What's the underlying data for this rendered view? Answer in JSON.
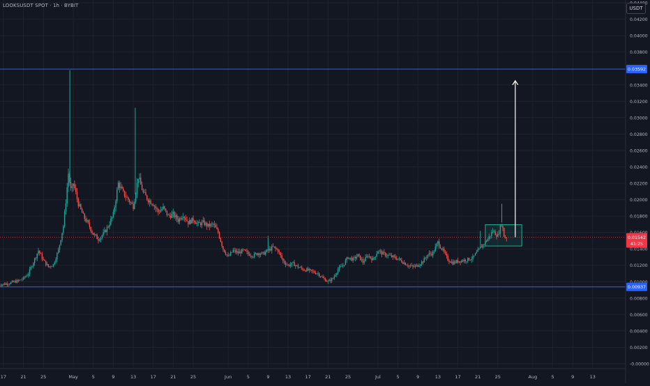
{
  "header": {
    "title": "LOOKSUSDT SPOT · 1h · BYBIT"
  },
  "currency": {
    "label": "USDT"
  },
  "colors": {
    "background": "#131722",
    "grid": "#1e222d",
    "axis_text": "#b2b5be",
    "up": "#26a69a",
    "down": "#ef5350",
    "level_line": "#2962ff",
    "current_line": "#f23645",
    "box_stroke": "#22ab94",
    "arrow": "#ffffff"
  },
  "chart_data": {
    "type": "candlestick",
    "title": "",
    "ylim": [
      0.0,
      0.045
    ],
    "y_ticks": [
      "0.04400",
      "0.04200",
      "0.04000",
      "0.03800",
      "0.03400",
      "0.03200",
      "0.03000",
      "0.02800",
      "0.02600",
      "0.02400",
      "0.02200",
      "0.02000",
      "0.01800",
      "0.01600",
      "0.01400",
      "0.01200",
      "0.01000",
      "0.00800",
      "0.00600",
      "0.00400",
      "0.00200",
      "-0.00000"
    ],
    "y_tick_values": [
      0.044,
      0.042,
      0.04,
      0.038,
      0.034,
      0.032,
      0.03,
      0.028,
      0.026,
      0.024,
      0.022,
      0.02,
      0.018,
      0.016,
      0.014,
      0.012,
      0.01,
      0.008,
      0.006,
      0.004,
      0.002,
      0.0
    ],
    "x_ticks": [
      "17",
      "21",
      "25",
      "May",
      "5",
      "9",
      "13",
      "17",
      "21",
      "25",
      "Jun",
      "5",
      "9",
      "13",
      "17",
      "21",
      "25",
      "Jul",
      "5",
      "9",
      "13",
      "17",
      "21",
      "25",
      "Aug",
      "5",
      "9",
      "13"
    ],
    "x_tick_days": [
      -13,
      -9,
      -5,
      1,
      5,
      9,
      13,
      17,
      21,
      25,
      32,
      36,
      40,
      44,
      48,
      52,
      56,
      62,
      66,
      70,
      74,
      78,
      82,
      86,
      93,
      97,
      101,
      105
    ],
    "x_axis_start_date": "2024-04-17",
    "horizontal_levels": [
      {
        "value": 0.03592,
        "label": "0.03592"
      },
      {
        "value": 0.00937,
        "label": "0.00937"
      }
    ],
    "current_price": {
      "value": 0.01542,
      "label": "0.01542",
      "countdown": "41:25"
    },
    "breakout_box": {
      "day_start": 83.5,
      "day_end": 90.8,
      "price_low": 0.01435,
      "price_high": 0.01695
    },
    "target_arrow": {
      "day": 89.5,
      "from": 0.01542,
      "to": 0.0345
    },
    "price_path": [
      [
        -14,
        0.0096
      ],
      [
        -12,
        0.0098
      ],
      [
        -10,
        0.0101
      ],
      [
        -9,
        0.0104
      ],
      [
        -8,
        0.011
      ],
      [
        -7,
        0.0124
      ],
      [
        -6,
        0.0138
      ],
      [
        -5,
        0.0126
      ],
      [
        -4,
        0.0118
      ],
      [
        -3,
        0.0121
      ],
      [
        -2,
        0.0138
      ],
      [
        -1,
        0.0168
      ],
      [
        -0.5,
        0.0198
      ],
      [
        0,
        0.0232
      ],
      [
        0.6,
        0.0208
      ],
      [
        1,
        0.022
      ],
      [
        2,
        0.0195
      ],
      [
        3,
        0.018
      ],
      [
        4,
        0.017
      ],
      [
        5,
        0.0158
      ],
      [
        6,
        0.0152
      ],
      [
        7,
        0.0158
      ],
      [
        8,
        0.0168
      ],
      [
        9,
        0.0182
      ],
      [
        10,
        0.022
      ],
      [
        11,
        0.0208
      ],
      [
        12,
        0.02
      ],
      [
        13,
        0.0192
      ],
      [
        14,
        0.0228
      ],
      [
        15,
        0.0208
      ],
      [
        16,
        0.02
      ],
      [
        17,
        0.0195
      ],
      [
        18,
        0.0185
      ],
      [
        19,
        0.019
      ],
      [
        20,
        0.018
      ],
      [
        21,
        0.0182
      ],
      [
        22,
        0.0175
      ],
      [
        23,
        0.0182
      ],
      [
        24,
        0.0172
      ],
      [
        25,
        0.0176
      ],
      [
        26,
        0.017
      ],
      [
        27,
        0.0172
      ],
      [
        28,
        0.0168
      ],
      [
        29,
        0.017
      ],
      [
        30,
        0.016
      ],
      [
        31,
        0.014
      ],
      [
        32,
        0.013
      ],
      [
        33,
        0.0138
      ],
      [
        34,
        0.0135
      ],
      [
        35,
        0.0138
      ],
      [
        36,
        0.0134
      ],
      [
        37,
        0.0132
      ],
      [
        38,
        0.0135
      ],
      [
        39,
        0.0134
      ],
      [
        40,
        0.0138
      ],
      [
        41,
        0.0142
      ],
      [
        42,
        0.0138
      ],
      [
        43,
        0.0125
      ],
      [
        44,
        0.012
      ],
      [
        45,
        0.0122
      ],
      [
        46,
        0.0118
      ],
      [
        47,
        0.0115
      ],
      [
        48,
        0.0114
      ],
      [
        49,
        0.0112
      ],
      [
        50,
        0.011
      ],
      [
        51,
        0.0104
      ],
      [
        52,
        0.01
      ],
      [
        53,
        0.0104
      ],
      [
        54,
        0.0115
      ],
      [
        55,
        0.012
      ],
      [
        56,
        0.013
      ],
      [
        57,
        0.0127
      ],
      [
        58,
        0.0132
      ],
      [
        59,
        0.0124
      ],
      [
        60,
        0.0132
      ],
      [
        61,
        0.0127
      ],
      [
        62,
        0.0138
      ],
      [
        63,
        0.0134
      ],
      [
        64,
        0.0132
      ],
      [
        65,
        0.013
      ],
      [
        66,
        0.0128
      ],
      [
        67,
        0.0124
      ],
      [
        68,
        0.012
      ],
      [
        69,
        0.0118
      ],
      [
        70,
        0.012
      ],
      [
        71,
        0.0125
      ],
      [
        72,
        0.0133
      ],
      [
        73,
        0.0135
      ],
      [
        74,
        0.0148
      ],
      [
        75,
        0.0138
      ],
      [
        76,
        0.0127
      ],
      [
        77,
        0.0123
      ],
      [
        78,
        0.0125
      ],
      [
        79,
        0.0126
      ],
      [
        80,
        0.0127
      ],
      [
        81,
        0.0129
      ],
      [
        82,
        0.0137
      ],
      [
        83,
        0.0145
      ],
      [
        84,
        0.0152
      ],
      [
        85,
        0.0162
      ],
      [
        86,
        0.0156
      ],
      [
        86.8,
        0.0172
      ],
      [
        87.3,
        0.0154
      ],
      [
        87.8,
        0.01542
      ]
    ],
    "spikes": [
      {
        "day": 0.3,
        "high": 0.0358
      },
      {
        "day": 13.4,
        "high": 0.0312
      },
      {
        "day": 86.8,
        "high": 0.0195
      },
      {
        "day": 82.5,
        "high": 0.0162
      },
      {
        "day": 40,
        "high": 0.0156
      }
    ]
  }
}
